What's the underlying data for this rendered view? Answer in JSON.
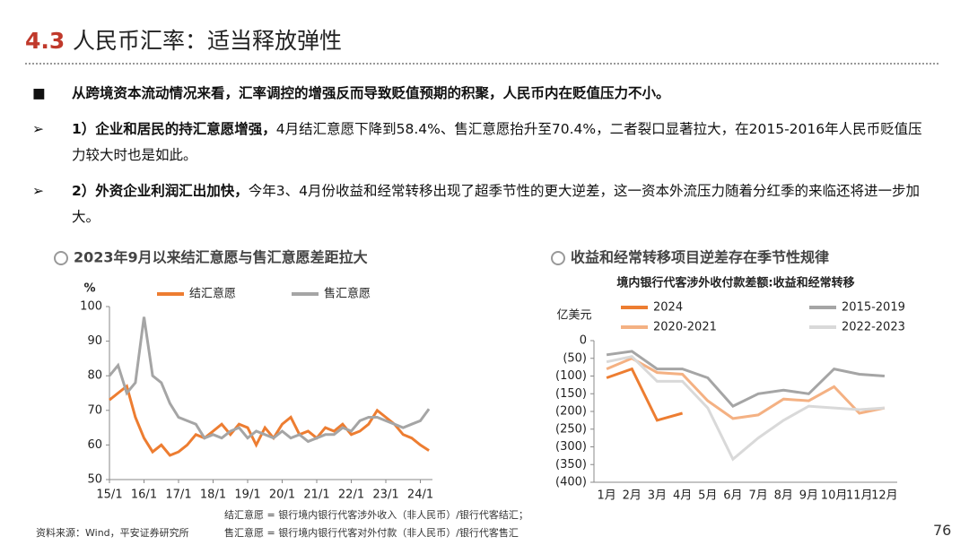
{
  "header": {
    "title_num": "4.3",
    "title": "人民币汇率：适当释放弹性"
  },
  "bullets": [
    {
      "marker": "■",
      "parts": [
        {
          "text": "从跨境资本流动情况来看，汇率调控的增强反而导致贬值预期的积聚，人民币内在贬值压力不小。",
          "bold": true
        }
      ]
    },
    {
      "marker": "➢",
      "parts": [
        {
          "text": "1）企业和居民的持汇意愿增强，",
          "bold": true
        },
        {
          "text": "4月结汇意愿下降到58.4%、售汇意愿抬升至70.4%，二者裂口显著拉大，在2015-2016年人民币贬值压力较大时也是如此。",
          "bold": false
        }
      ]
    },
    {
      "marker": "➢",
      "parts": [
        {
          "text": "2）外资企业利润汇出加快，",
          "bold": true
        },
        {
          "text": "今年3、4月份收益和经常转移出现了超季节性的更大逆差，这一资本外流压力随着分红季的来临还将进一步加大。",
          "bold": false
        }
      ]
    }
  ],
  "chart_data": [
    {
      "type": "line",
      "title": "2023年9月以来结汇意愿与售汇意愿差距拉大",
      "y_label": "%",
      "x": [
        2015,
        2015.25,
        2015.5,
        2015.75,
        2016,
        2016.25,
        2016.5,
        2016.75,
        2017,
        2017.25,
        2017.5,
        2017.75,
        2018,
        2018.25,
        2018.5,
        2018.75,
        2019,
        2019.25,
        2019.5,
        2019.75,
        2020,
        2020.25,
        2020.5,
        2020.75,
        2021,
        2021.25,
        2021.5,
        2021.75,
        2022,
        2022.25,
        2022.5,
        2022.75,
        2023,
        2023.25,
        2023.5,
        2023.75,
        2024,
        2024.25
      ],
      "xlim": [
        2015,
        2024.35
      ],
      "xticks": [
        {
          "value": 2015,
          "label": "15/1"
        },
        {
          "value": 2016,
          "label": "16/1"
        },
        {
          "value": 2017,
          "label": "17/1"
        },
        {
          "value": 2018,
          "label": "18/1"
        },
        {
          "value": 2019,
          "label": "19/1"
        },
        {
          "value": 2020,
          "label": "20/1"
        },
        {
          "value": 2021,
          "label": "21/1"
        },
        {
          "value": 2022,
          "label": "22/1"
        },
        {
          "value": 2023,
          "label": "23/1"
        },
        {
          "value": 2024,
          "label": "24/1"
        }
      ],
      "ylim": [
        50,
        100
      ],
      "yticks": [
        50,
        60,
        70,
        80,
        90,
        100
      ],
      "series": [
        {
          "name": "结汇意愿",
          "color": "#ed7d31",
          "values": [
            73,
            75,
            77,
            68,
            62,
            58,
            60,
            57,
            58,
            60,
            63,
            62,
            64,
            66,
            63,
            66,
            65,
            60,
            65,
            62,
            66,
            68,
            63,
            64,
            62,
            65,
            64,
            66,
            63,
            64,
            66,
            70,
            68,
            66,
            63,
            62,
            60,
            58.4
          ]
        },
        {
          "name": "售汇意愿",
          "color": "#a5a5a5",
          "values": [
            80,
            83,
            75,
            78,
            97,
            80,
            78,
            72,
            68,
            67,
            66,
            62,
            63,
            62,
            64,
            65,
            62,
            64,
            63,
            62,
            64,
            62,
            63,
            61,
            62,
            63,
            63,
            65,
            64,
            67,
            68,
            68,
            67,
            66,
            65,
            66,
            67,
            70.4
          ]
        }
      ]
    },
    {
      "type": "line",
      "title": "收益和经常转移项目逆差存在季节性规律",
      "subtitle": "境内银行代客涉外收付款差额:收益和经常转移",
      "y_label": "亿美元",
      "categories": [
        "1月",
        "2月",
        "3月",
        "4月",
        "5月",
        "6月",
        "7月",
        "8月",
        "9月",
        "10月",
        "11月",
        "12月"
      ],
      "ylim": [
        -400,
        0
      ],
      "yticks": [
        0,
        {
          "value": -50,
          "label": "(50)"
        },
        {
          "value": -100,
          "label": "(100)"
        },
        {
          "value": -150,
          "label": "(150)"
        },
        {
          "value": -200,
          "label": "(200)"
        },
        {
          "value": -250,
          "label": "(250)"
        },
        {
          "value": -300,
          "label": "(300)"
        },
        {
          "value": -350,
          "label": "(350)"
        },
        {
          "value": -400,
          "label": "(400)"
        }
      ],
      "series": [
        {
          "name": "2024",
          "color": "#ed7d31",
          "values": [
            -105,
            -80,
            -225,
            -205,
            null,
            null,
            null,
            null,
            null,
            null,
            null,
            null
          ]
        },
        {
          "name": "2015-2019",
          "color": "#a5a5a5",
          "values": [
            -40,
            -30,
            -80,
            -80,
            -105,
            -185,
            -150,
            -140,
            -150,
            -80,
            -95,
            -100
          ]
        },
        {
          "name": "2020-2021",
          "color": "#f4b183",
          "values": [
            -80,
            -50,
            -90,
            -95,
            -170,
            -220,
            -210,
            -165,
            -170,
            -130,
            -205,
            -190
          ]
        },
        {
          "name": "2022-2023",
          "color": "#d9d9d9",
          "values": [
            -60,
            -45,
            -115,
            -115,
            -190,
            -335,
            -275,
            -225,
            -185,
            -190,
            -195,
            -190
          ]
        }
      ]
    }
  ],
  "notes": [
    "结汇意愿 = 银行境内银行代客涉外收入（非人民币）/银行代客结汇；",
    "售汇意愿 = 银行境内银行代客对外付款（非人民币）/银行代客售汇"
  ],
  "source": "资料来源：Wind，平安证券研究所",
  "page_number": "76"
}
